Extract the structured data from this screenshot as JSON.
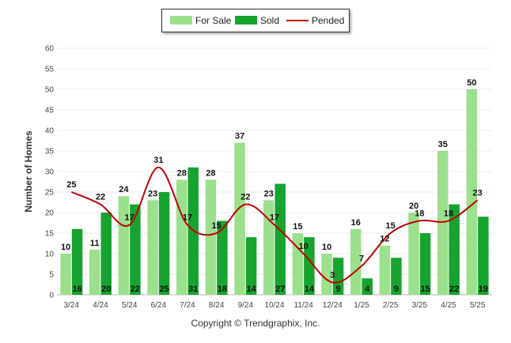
{
  "chart_data": {
    "type": "bar",
    "categories": [
      "3/24",
      "4/24",
      "5/24",
      "6/24",
      "7/24",
      "8/24",
      "9/24",
      "10/24",
      "11/24",
      "12/24",
      "1/25",
      "2/25",
      "3/25",
      "4/25",
      "5/25"
    ],
    "series": [
      {
        "name": "For Sale",
        "type": "bar",
        "color": "#9be08c",
        "values": [
          10,
          11,
          24,
          23,
          28,
          28,
          37,
          23,
          15,
          10,
          16,
          12,
          20,
          35,
          50
        ]
      },
      {
        "name": "Sold",
        "type": "bar",
        "color": "#17a32f",
        "values": [
          16,
          20,
          22,
          25,
          31,
          18,
          14,
          27,
          14,
          9,
          4,
          9,
          15,
          22,
          19
        ]
      },
      {
        "name": "Pended",
        "type": "line",
        "color": "#c00000",
        "values": [
          25,
          22,
          17,
          31,
          17,
          15,
          22,
          17,
          10,
          3,
          7,
          15,
          18,
          18,
          23
        ]
      }
    ],
    "ylabel": "Number of Homes",
    "xlabel": "",
    "ylim": [
      0,
      60
    ],
    "yticks": [
      0,
      5,
      10,
      15,
      20,
      25,
      30,
      35,
      40,
      45,
      50,
      55,
      60
    ],
    "grid": true,
    "legend_position": "top-center"
  },
  "footer": {
    "copyright": "Copyright © Trendgraphix, Inc."
  }
}
